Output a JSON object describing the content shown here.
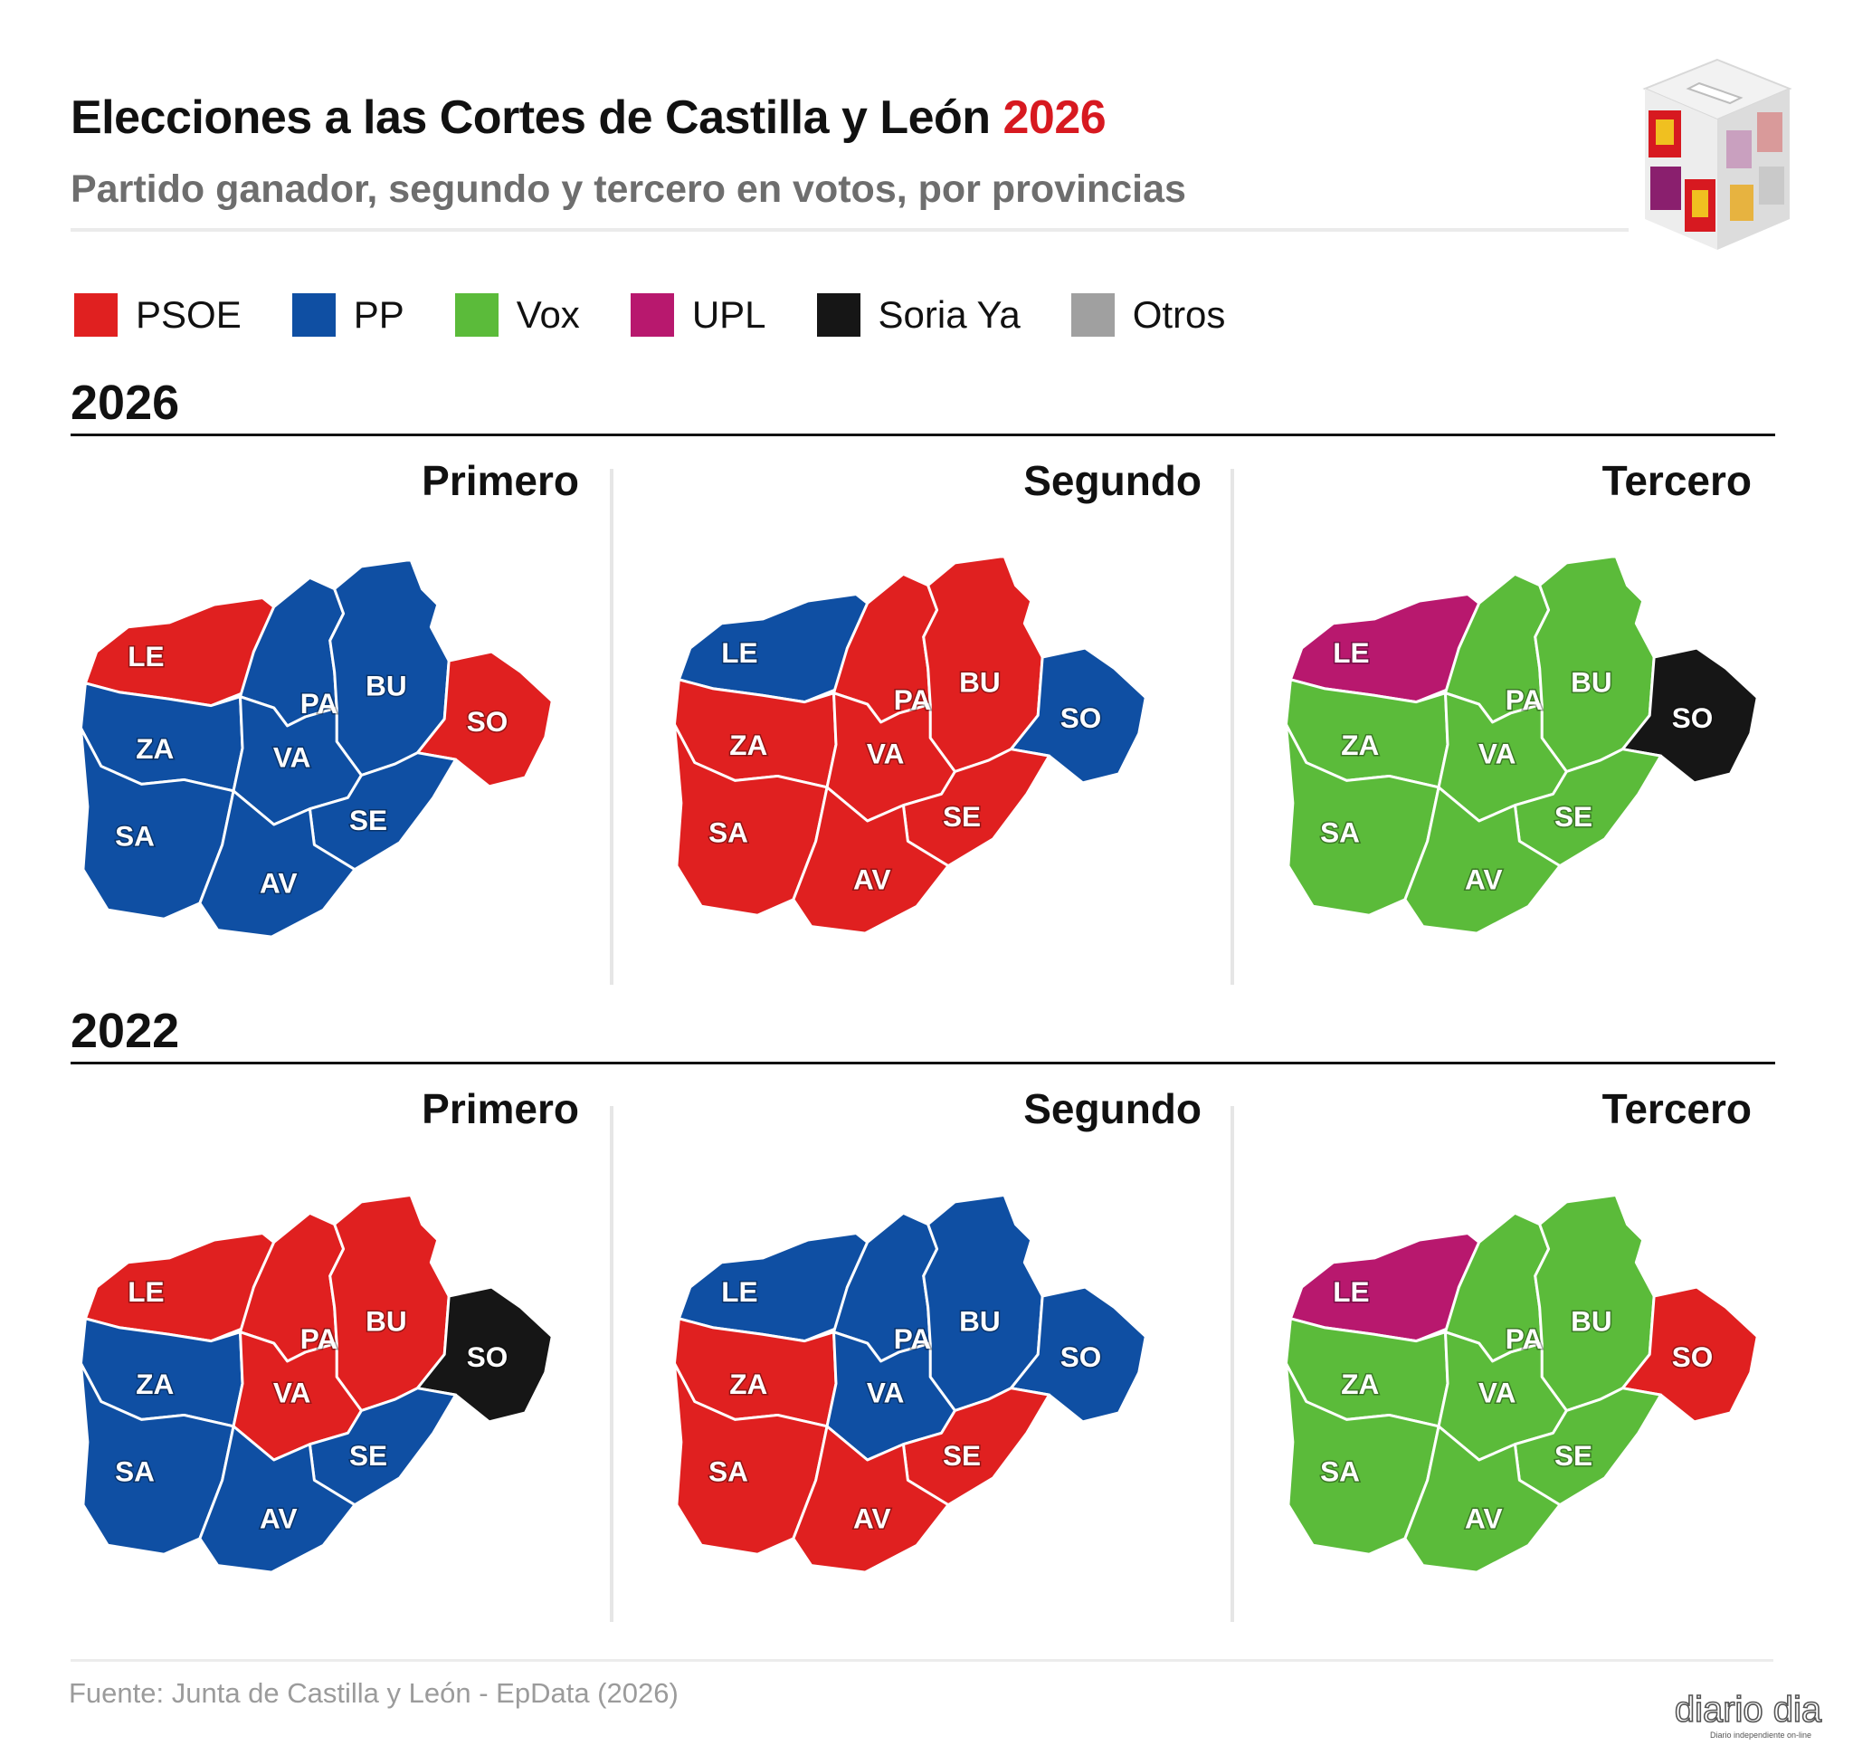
{
  "header": {
    "title_main": "Elecciones a las Cortes de Castilla y León",
    "title_year": "2026",
    "subtitle": "Partido ganador, segundo y tercero en votos, por provincias"
  },
  "legend": [
    {
      "party": "PSOE",
      "color": "#e02020"
    },
    {
      "party": "PP",
      "color": "#0f4fa3"
    },
    {
      "party": "Vox",
      "color": "#5bbb3a"
    },
    {
      "party": "UPL",
      "color": "#b8186e"
    },
    {
      "party": "Soria Ya",
      "color": "#161616"
    },
    {
      "party": "Otros",
      "color": "#a0a0a0"
    }
  ],
  "map_data": {
    "provinces": [
      "LE",
      "PA",
      "BU",
      "ZA",
      "VA",
      "SO",
      "SA",
      "SE",
      "AV"
    ],
    "sections": [
      {
        "year": "2026",
        "panels": [
          {
            "title": "Primero",
            "results": {
              "LE": "PSOE",
              "PA": "PP",
              "BU": "PP",
              "ZA": "PP",
              "VA": "PP",
              "SO": "PSOE",
              "SA": "PP",
              "SE": "PP",
              "AV": "PP"
            }
          },
          {
            "title": "Segundo",
            "results": {
              "LE": "PP",
              "PA": "PSOE",
              "BU": "PSOE",
              "ZA": "PSOE",
              "VA": "PSOE",
              "SO": "PP",
              "SA": "PSOE",
              "SE": "PSOE",
              "AV": "PSOE"
            }
          },
          {
            "title": "Tercero",
            "results": {
              "LE": "UPL",
              "PA": "Vox",
              "BU": "Vox",
              "ZA": "Vox",
              "VA": "Vox",
              "SO": "Soria Ya",
              "SA": "Vox",
              "SE": "Vox",
              "AV": "Vox"
            }
          }
        ]
      },
      {
        "year": "2022",
        "panels": [
          {
            "title": "Primero",
            "results": {
              "LE": "PSOE",
              "PA": "PSOE",
              "BU": "PSOE",
              "ZA": "PP",
              "VA": "PSOE",
              "SO": "Soria Ya",
              "SA": "PP",
              "SE": "PP",
              "AV": "PP"
            }
          },
          {
            "title": "Segundo",
            "results": {
              "LE": "PP",
              "PA": "PP",
              "BU": "PP",
              "ZA": "PSOE",
              "VA": "PP",
              "SO": "PP",
              "SA": "PSOE",
              "SE": "PSOE",
              "AV": "PSOE"
            }
          },
          {
            "title": "Tercero",
            "results": {
              "LE": "UPL",
              "PA": "Vox",
              "BU": "Vox",
              "ZA": "Vox",
              "VA": "Vox",
              "SO": "PSOE",
              "SA": "Vox",
              "SE": "Vox",
              "AV": "Vox"
            }
          }
        ]
      }
    ]
  },
  "footer": {
    "source": "Fuente: Junta de Castilla y León - EpData (2026)",
    "brand": "diario dia",
    "brand_tagline": "Diario independiente on-line"
  }
}
